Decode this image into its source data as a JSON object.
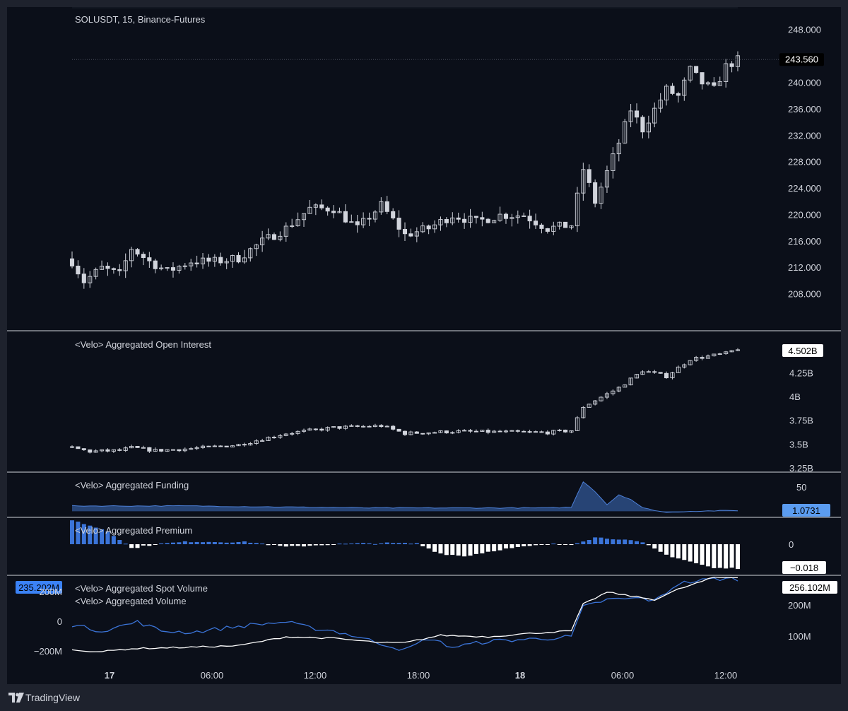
{
  "colors": {
    "background": "#0b0f19",
    "text": "#d1d4dc",
    "candle": "#d1d4dc",
    "spot_line": "#3b74d8",
    "premium_neg": "#ffffff",
    "funding_fill": "#2a4a7f",
    "accent_label": "#3b82f6"
  },
  "footer": {
    "brand": "TradingView",
    "logo_icon": "tradingview-logo-icon"
  },
  "chart_data": [
    {
      "type": "candlestick",
      "title": "SOLUSDT, 15, Binance-Futures",
      "last_value_label": "243.560",
      "y_ticks": [
        "248.000",
        "240.000",
        "236.000",
        "232.000",
        "228.000",
        "224.000",
        "220.000",
        "216.000",
        "212.000",
        "208.000"
      ],
      "ylim": [
        204,
        250
      ],
      "x_ticks": [
        "17",
        "06:00",
        "12:00",
        "18:00",
        "18",
        "06:00",
        "12:00"
      ],
      "close_path": [
        [
          0,
          213
        ],
        [
          2,
          210
        ],
        [
          5,
          212
        ],
        [
          8,
          211
        ],
        [
          10,
          215
        ],
        [
          13,
          213
        ],
        [
          16,
          211.5
        ],
        [
          20,
          213
        ],
        [
          24,
          213
        ],
        [
          28,
          213.5
        ],
        [
          32,
          216
        ],
        [
          36,
          218
        ],
        [
          40,
          221
        ],
        [
          44,
          221
        ],
        [
          48,
          218
        ],
        [
          52,
          221.5
        ],
        [
          56,
          217
        ],
        [
          60,
          218
        ],
        [
          64,
          220
        ],
        [
          68,
          219
        ],
        [
          72,
          220
        ],
        [
          76,
          220
        ],
        [
          80,
          218
        ],
        [
          84,
          218.5
        ],
        [
          86,
          227
        ],
        [
          88,
          222
        ],
        [
          92,
          231
        ],
        [
          94,
          236
        ],
        [
          96,
          233
        ],
        [
          98,
          236
        ],
        [
          100,
          239
        ],
        [
          102,
          238
        ],
        [
          104,
          242
        ],
        [
          106,
          240
        ],
        [
          108,
          239
        ],
        [
          110,
          242.5
        ],
        [
          112,
          243.5
        ]
      ]
    },
    {
      "type": "candlestick",
      "title": "<Velo> Aggregated Open Interest",
      "last_value_label": "4.502B",
      "y_ticks": [
        "4.25B",
        "4B",
        "3.75B",
        "3.5B",
        "3.25B"
      ],
      "ylim": [
        3.25,
        4.55
      ],
      "close_path": [
        [
          0,
          3.47
        ],
        [
          3,
          3.43
        ],
        [
          8,
          3.44
        ],
        [
          10,
          3.47
        ],
        [
          14,
          3.44
        ],
        [
          20,
          3.46
        ],
        [
          28,
          3.5
        ],
        [
          36,
          3.62
        ],
        [
          44,
          3.68
        ],
        [
          52,
          3.7
        ],
        [
          56,
          3.62
        ],
        [
          64,
          3.64
        ],
        [
          80,
          3.63
        ],
        [
          84,
          3.65
        ],
        [
          86,
          3.9
        ],
        [
          92,
          4.1
        ],
        [
          96,
          4.28
        ],
        [
          100,
          4.22
        ],
        [
          104,
          4.4
        ],
        [
          110,
          4.46
        ],
        [
          112,
          4.51
        ]
      ]
    },
    {
      "type": "area",
      "title": "<Velo> Aggregated Funding",
      "last_value_label": "1.0731",
      "y_ticks": [
        "50"
      ],
      "ylim": [
        -5,
        55
      ],
      "points": [
        [
          0,
          8
        ],
        [
          10,
          8
        ],
        [
          20,
          8
        ],
        [
          30,
          7
        ],
        [
          40,
          6
        ],
        [
          50,
          5
        ],
        [
          60,
          5
        ],
        [
          70,
          5
        ],
        [
          80,
          5
        ],
        [
          84,
          6
        ],
        [
          86,
          45
        ],
        [
          88,
          30
        ],
        [
          90,
          10
        ],
        [
          92,
          25
        ],
        [
          94,
          18
        ],
        [
          96,
          5
        ],
        [
          100,
          -2
        ],
        [
          104,
          0
        ],
        [
          112,
          1.07
        ]
      ]
    },
    {
      "type": "bar",
      "title": "<Velo> Aggregated Premium",
      "last_value_label": "-0.018",
      "y_ticks": [
        "0"
      ],
      "ylim": [
        -0.02,
        0.02
      ],
      "points": [
        [
          0,
          0.018
        ],
        [
          6,
          0.01
        ],
        [
          10,
          -0.003
        ],
        [
          14,
          0
        ],
        [
          20,
          0.002
        ],
        [
          30,
          0.0015
        ],
        [
          36,
          -0.002
        ],
        [
          44,
          0
        ],
        [
          52,
          0.0008
        ],
        [
          58,
          0.0005
        ],
        [
          62,
          -0.007
        ],
        [
          66,
          -0.009
        ],
        [
          72,
          -0.004
        ],
        [
          80,
          0
        ],
        [
          84,
          0
        ],
        [
          88,
          0.005
        ],
        [
          92,
          0.004
        ],
        [
          96,
          0.001
        ],
        [
          100,
          -0.008
        ],
        [
          108,
          -0.018
        ],
        [
          112,
          -0.018
        ]
      ]
    },
    {
      "type": "line",
      "titles": [
        "<Velo> Aggregated Spot Volume",
        "<Velo> Aggregated Volume"
      ],
      "left_value_label": "235.202M",
      "right_value_label": "256.102M",
      "left_y_ticks": [
        "200M",
        "0",
        "−200M"
      ],
      "right_y_ticks": [
        "200M",
        "100M"
      ],
      "series": [
        {
          "name": "<Velo> Aggregated Spot Volume",
          "points": [
            [
              0,
              -20
            ],
            [
              5,
              -60
            ],
            [
              11,
              0
            ],
            [
              15,
              -60
            ],
            [
              20,
              -70
            ],
            [
              30,
              -20
            ],
            [
              36,
              0
            ],
            [
              40,
              -40
            ],
            [
              44,
              -60
            ],
            [
              48,
              -100
            ],
            [
              56,
              -190
            ],
            [
              60,
              -110
            ],
            [
              64,
              -170
            ],
            [
              70,
              -130
            ],
            [
              80,
              -110
            ],
            [
              84,
              -100
            ],
            [
              86,
              100
            ],
            [
              90,
              150
            ],
            [
              96,
              160
            ],
            [
              98,
              140
            ],
            [
              102,
              260
            ],
            [
              108,
              290
            ],
            [
              112,
              290
            ]
          ]
        },
        {
          "name": "<Velo> Aggregated Volume",
          "points": [
            [
              0,
              -190
            ],
            [
              5,
              -200
            ],
            [
              10,
              -180
            ],
            [
              20,
              -170
            ],
            [
              28,
              -160
            ],
            [
              36,
              -100
            ],
            [
              44,
              -110
            ],
            [
              52,
              -140
            ],
            [
              56,
              -140
            ],
            [
              62,
              -90
            ],
            [
              70,
              -100
            ],
            [
              76,
              -80
            ],
            [
              84,
              -60
            ],
            [
              86,
              120
            ],
            [
              90,
              200
            ],
            [
              98,
              150
            ],
            [
              102,
              220
            ],
            [
              108,
              300
            ],
            [
              112,
              300
            ]
          ]
        }
      ]
    }
  ]
}
